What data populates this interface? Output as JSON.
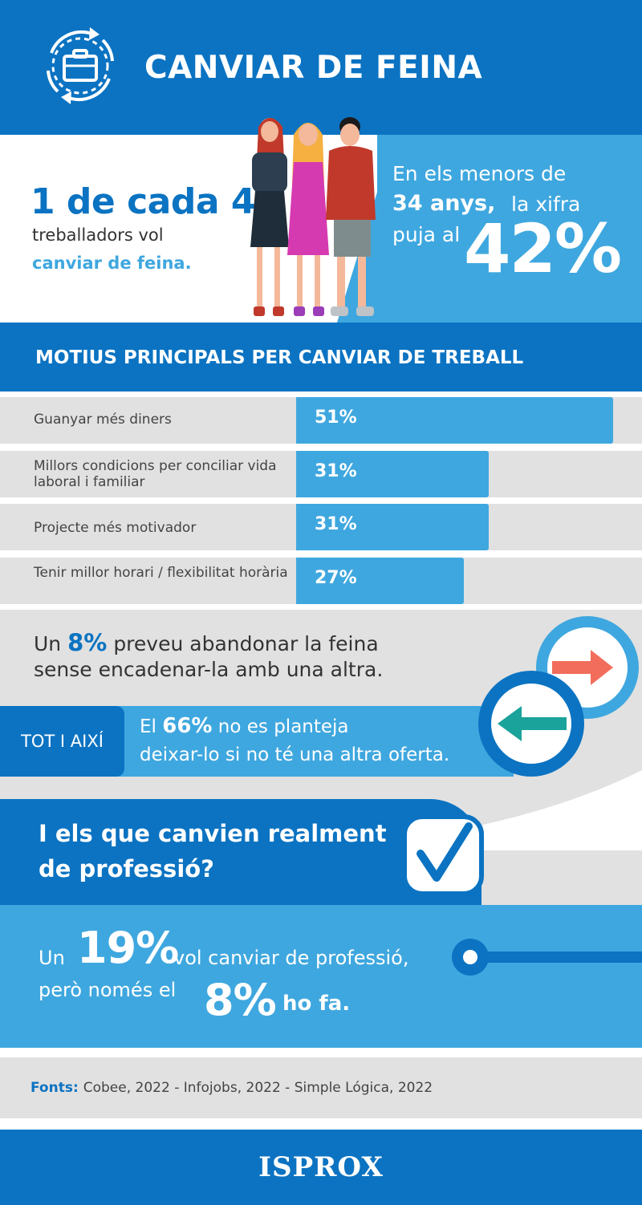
{
  "header": {
    "title": "CANVIAR DE FEINA",
    "icon": "briefcase-cycle-icon"
  },
  "hero": {
    "stat": "1 de cada 4",
    "sub_line1": "treballadors vol",
    "sub_line2": "canviar de feina.",
    "young_line1": "En els menors de",
    "young_bold": "34 anys,",
    "young_line2_rest": "la xifra",
    "young_line3": "puja al",
    "young_pct": "42%"
  },
  "reasons": {
    "title": "MOTIUS PRINCIPALS PER CANVIAR DE TREBALL",
    "items": [
      {
        "label": "Guanyar més diners",
        "value": "51%",
        "pct": 51
      },
      {
        "label": "Millors condicions per conciliar vida laboral i familiar",
        "value": "31%",
        "pct": 31
      },
      {
        "label": "Projecte més motivador",
        "value": "31%",
        "pct": 31
      },
      {
        "label": "Tenir millor horari / flexibilitat horària",
        "value": "27%",
        "pct": 27
      }
    ]
  },
  "quit": {
    "pre": "Un",
    "pct": "8%",
    "post": "preveu abandonar la feina",
    "line2": "sense encadenar-la amb una altra."
  },
  "tot": {
    "tag": "TOT I AIXÍ",
    "pre": "El",
    "pct": "66%",
    "post": "no es planteja",
    "line2": "deixar-lo si no té una altra oferta."
  },
  "question": {
    "line1": "I els que canvien realment",
    "line2": "de professió?"
  },
  "profession": {
    "pre1": "Un",
    "pct1": "19%",
    "post1": "vol canviar de professió,",
    "pre2": "però només el",
    "pct2": "8%",
    "post2": "ho fa."
  },
  "sources": {
    "label": "Fonts:",
    "text": "Cobee, 2022 - Infojobs, 2022 - Simple Lógica, 2022"
  },
  "footer": {
    "logo": "ISPROX"
  },
  "colors": {
    "dark_blue": "#0b73c2",
    "light_blue": "#3fa7df",
    "grey": "#e1e1e1",
    "coral": "#f26d5b",
    "teal": "#1aa39a"
  }
}
